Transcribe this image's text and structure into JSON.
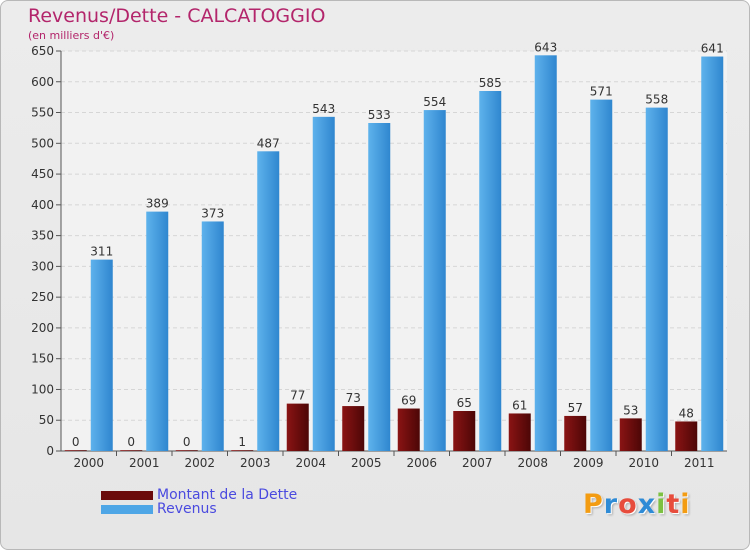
{
  "chart_data": {
    "type": "bar",
    "title": "Revenus/Dette - CALCATOGGIO",
    "unit_label": "(en milliers d'€)",
    "categories": [
      "2000",
      "2001",
      "2002",
      "2003",
      "2004",
      "2005",
      "2006",
      "2007",
      "2008",
      "2009",
      "2010",
      "2011"
    ],
    "series": [
      {
        "name": "Montant de la Dette",
        "color": "#6b0b0b",
        "values": [
          0,
          0,
          0,
          1,
          77,
          73,
          69,
          65,
          61,
          57,
          53,
          48
        ]
      },
      {
        "name": "Revenus",
        "color": "#4ea6e6",
        "values": [
          311,
          389,
          373,
          487,
          543,
          533,
          554,
          585,
          643,
          571,
          558,
          641
        ]
      }
    ],
    "ylim": [
      0,
      650
    ],
    "yticks": [
      0,
      50,
      100,
      150,
      200,
      250,
      300,
      350,
      400,
      450,
      500,
      550,
      600,
      650
    ],
    "grid": true,
    "legend_position": "bottom-left"
  },
  "branding": {
    "logo_text": "Proxiti"
  }
}
